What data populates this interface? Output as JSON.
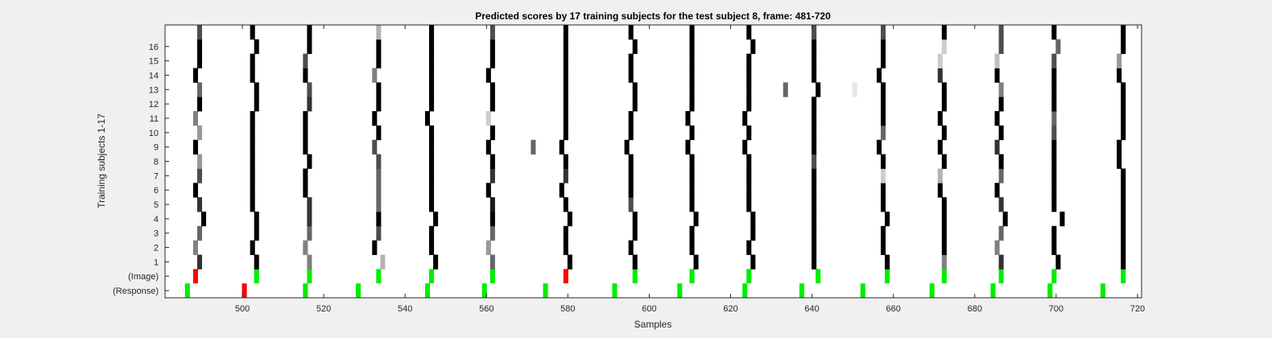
{
  "chart_data": {
    "type": "heatmap",
    "title": "Predicted scores by 17 training subjects for the test subject 8, frame: 481-720",
    "xlabel": "Samples",
    "ylabel": "Training subjects 1-17",
    "xlim": [
      481,
      720
    ],
    "xticks": [
      500,
      520,
      540,
      560,
      580,
      600,
      620,
      640,
      660,
      680,
      700,
      720
    ],
    "rows": [
      "(Response)",
      "(Image)",
      "1",
      "2",
      "3",
      "4",
      "5",
      "6",
      "7",
      "8",
      "9",
      "10",
      "11",
      "12",
      "13",
      "14",
      "15",
      "16",
      "17"
    ],
    "row_labels_shown": [
      "(Response)",
      "(Image)",
      "1",
      "2",
      "3",
      "4",
      "5",
      "6",
      "7",
      "8",
      "9",
      "10",
      "11",
      "12",
      "13",
      "14",
      "15",
      "16"
    ],
    "colors": {
      "background": "#ffffff",
      "figure": "#f0f0f0",
      "match": "#00ee00",
      "mismatch": "#ff0000",
      "axis": "#262626"
    },
    "image_markers": [
      {
        "x": 488,
        "color": "red"
      },
      {
        "x": 503,
        "color": "green"
      },
      {
        "x": 516,
        "color": "green"
      },
      {
        "x": 533,
        "color": "green"
      },
      {
        "x": 546,
        "color": "green"
      },
      {
        "x": 561,
        "color": "green"
      },
      {
        "x": 579,
        "color": "red"
      },
      {
        "x": 596,
        "color": "green"
      },
      {
        "x": 610,
        "color": "green"
      },
      {
        "x": 624,
        "color": "green"
      },
      {
        "x": 641,
        "color": "green"
      },
      {
        "x": 658,
        "color": "green"
      },
      {
        "x": 672,
        "color": "green"
      },
      {
        "x": 686,
        "color": "green"
      },
      {
        "x": 699,
        "color": "green"
      },
      {
        "x": 716,
        "color": "green"
      }
    ],
    "response_markers": [
      {
        "x": 486,
        "color": "green"
      },
      {
        "x": 500,
        "color": "red"
      },
      {
        "x": 515,
        "color": "green"
      },
      {
        "x": 528,
        "color": "green"
      },
      {
        "x": 545,
        "color": "green"
      },
      {
        "x": 559,
        "color": "green"
      },
      {
        "x": 574,
        "color": "green"
      },
      {
        "x": 591,
        "color": "green"
      },
      {
        "x": 607,
        "color": "green"
      },
      {
        "x": 623,
        "color": "green"
      },
      {
        "x": 637,
        "color": "green"
      },
      {
        "x": 652,
        "color": "green"
      },
      {
        "x": 669,
        "color": "green"
      },
      {
        "x": 684,
        "color": "green"
      },
      {
        "x": 698,
        "color": "green"
      },
      {
        "x": 711,
        "color": "green"
      }
    ],
    "peak_columns_x": [
      489,
      503,
      516,
      533,
      546,
      561,
      579,
      595,
      610,
      624,
      640,
      657,
      672,
      686,
      699,
      716
    ],
    "score_rows": [
      {
        "subject": 1,
        "x": [
          489,
          503,
          516,
          534,
          547,
          561,
          580,
          596,
          611,
          625,
          640,
          658,
          672,
          686,
          700,
          716
        ],
        "intensity": [
          0.8,
          1.0,
          0.5,
          0.3,
          1.0,
          0.6,
          1.0,
          1.0,
          1.0,
          1.0,
          1.0,
          1.0,
          0.5,
          0.8,
          1.0,
          1.0
        ]
      },
      {
        "subject": 2,
        "x": [
          488,
          502,
          515,
          532,
          546,
          560,
          579,
          595,
          610,
          624,
          640,
          657,
          672,
          685,
          699,
          716
        ],
        "intensity": [
          0.5,
          1.0,
          0.5,
          1.0,
          1.0,
          0.4,
          1.0,
          1.0,
          1.0,
          1.0,
          1.0,
          1.0,
          1.0,
          0.5,
          1.0,
          1.0
        ]
      },
      {
        "subject": 3,
        "x": [
          489,
          503,
          516,
          533,
          546,
          561,
          579,
          596,
          610,
          625,
          640,
          657,
          672,
          686,
          699,
          716
        ],
        "intensity": [
          0.6,
          1.0,
          0.6,
          0.7,
          1.0,
          0.6,
          1.0,
          1.0,
          1.0,
          1.0,
          1.0,
          1.0,
          1.0,
          0.6,
          1.0,
          1.0
        ]
      },
      {
        "subject": 4,
        "x": [
          490,
          503,
          516,
          533,
          547,
          561,
          580,
          596,
          611,
          625,
          640,
          658,
          672,
          687,
          701,
          716
        ],
        "intensity": [
          1.0,
          1.0,
          0.8,
          1.0,
          1.0,
          1.0,
          1.0,
          1.0,
          1.0,
          1.0,
          1.0,
          1.0,
          1.0,
          1.0,
          1.0,
          1.0
        ]
      },
      {
        "subject": 5,
        "x": [
          489,
          502,
          516,
          533,
          546,
          561,
          579,
          595,
          610,
          624,
          640,
          657,
          672,
          686,
          699,
          716
        ],
        "intensity": [
          0.8,
          1.0,
          0.8,
          0.6,
          1.0,
          0.9,
          1.0,
          0.7,
          1.0,
          1.0,
          1.0,
          1.0,
          1.0,
          0.8,
          1.0,
          1.0
        ]
      },
      {
        "subject": 6,
        "x": [
          488,
          502,
          515,
          533,
          546,
          560,
          578,
          595,
          610,
          624,
          640,
          657,
          671,
          685,
          699,
          716
        ],
        "intensity": [
          1.0,
          1.0,
          1.0,
          0.6,
          1.0,
          1.0,
          1.0,
          1.0,
          1.0,
          1.0,
          1.0,
          1.0,
          1.0,
          1.0,
          1.0,
          1.0
        ]
      },
      {
        "subject": 7,
        "x": [
          489,
          502,
          515,
          533,
          546,
          561,
          579,
          595,
          610,
          624,
          640,
          657,
          671,
          686,
          699,
          716
        ],
        "intensity": [
          0.7,
          1.0,
          1.0,
          0.6,
          1.0,
          0.8,
          0.8,
          1.0,
          1.0,
          1.0,
          1.0,
          0.2,
          0.3,
          0.6,
          1.0,
          1.0
        ]
      },
      {
        "subject": 8,
        "x": [
          489,
          502,
          516,
          533,
          546,
          561,
          579,
          595,
          610,
          624,
          640,
          657,
          672,
          686,
          699,
          715
        ],
        "intensity": [
          0.4,
          1.0,
          1.0,
          0.7,
          1.0,
          1.0,
          1.0,
          1.0,
          1.0,
          1.0,
          0.7,
          1.0,
          1.0,
          1.0,
          1.0,
          1.0
        ]
      },
      {
        "subject": 9,
        "x": [
          488,
          502,
          515,
          532,
          546,
          560,
          571,
          578,
          594,
          609,
          623,
          640,
          656,
          671,
          685,
          699,
          715
        ],
        "intensity": [
          1.0,
          1.0,
          1.0,
          0.7,
          1.0,
          1.0,
          0.6,
          1.0,
          1.0,
          1.0,
          1.0,
          1.0,
          1.0,
          1.0,
          0.8,
          1.0,
          1.0
        ]
      },
      {
        "subject": 10,
        "x": [
          489,
          502,
          515,
          533,
          546,
          561,
          579,
          595,
          610,
          624,
          640,
          657,
          672,
          686,
          699,
          716
        ],
        "intensity": [
          0.4,
          1.0,
          1.0,
          1.0,
          1.0,
          1.0,
          1.0,
          1.0,
          1.0,
          1.0,
          1.0,
          0.6,
          1.0,
          1.0,
          0.7,
          1.0
        ]
      },
      {
        "subject": 11,
        "x": [
          488,
          502,
          515,
          532,
          545,
          560,
          579,
          595,
          609,
          623,
          640,
          657,
          671,
          685,
          699,
          716
        ],
        "intensity": [
          0.5,
          1.0,
          1.0,
          1.0,
          1.0,
          0.2,
          1.0,
          1.0,
          1.0,
          1.0,
          1.0,
          1.0,
          1.0,
          1.0,
          0.6,
          1.0
        ]
      },
      {
        "subject": 12,
        "x": [
          489,
          503,
          516,
          533,
          546,
          561,
          579,
          596,
          610,
          624,
          640,
          657,
          672,
          686,
          699,
          716
        ],
        "intensity": [
          1.0,
          1.0,
          0.8,
          1.0,
          1.0,
          1.0,
          1.0,
          1.0,
          1.0,
          1.0,
          1.0,
          1.0,
          1.0,
          1.0,
          1.0,
          1.0
        ]
      },
      {
        "subject": 13,
        "x": [
          489,
          503,
          516,
          533,
          546,
          561,
          579,
          596,
          610,
          624,
          633,
          641,
          650,
          657,
          672,
          686,
          699,
          716
        ],
        "intensity": [
          0.6,
          1.0,
          0.7,
          1.0,
          1.0,
          1.0,
          1.0,
          1.0,
          1.0,
          1.0,
          0.6,
          1.0,
          0.1,
          1.0,
          1.0,
          0.5,
          1.0,
          1.0
        ]
      },
      {
        "subject": 14,
        "x": [
          488,
          502,
          515,
          532,
          546,
          560,
          579,
          595,
          610,
          624,
          640,
          656,
          671,
          685,
          699,
          715
        ],
        "intensity": [
          1.0,
          1.0,
          1.0,
          0.5,
          1.0,
          1.0,
          1.0,
          1.0,
          1.0,
          1.0,
          1.0,
          1.0,
          0.8,
          1.0,
          1.0,
          1.0
        ]
      },
      {
        "subject": 15,
        "x": [
          489,
          502,
          515,
          533,
          546,
          561,
          579,
          595,
          610,
          624,
          640,
          657,
          671,
          685,
          699,
          715
        ],
        "intensity": [
          1.0,
          1.0,
          0.7,
          1.0,
          1.0,
          1.0,
          1.0,
          1.0,
          1.0,
          1.0,
          1.0,
          1.0,
          0.2,
          0.25,
          0.7,
          0.4
        ]
      },
      {
        "subject": 16,
        "x": [
          489,
          503,
          516,
          533,
          546,
          561,
          579,
          596,
          610,
          625,
          640,
          657,
          672,
          686,
          700,
          716
        ],
        "intensity": [
          1.0,
          1.0,
          1.0,
          1.0,
          1.0,
          1.0,
          1.0,
          1.0,
          1.0,
          1.0,
          1.0,
          1.0,
          0.2,
          0.7,
          0.6,
          1.0
        ]
      },
      {
        "subject": 17,
        "x": [
          489,
          502,
          516,
          533,
          546,
          561,
          579,
          595,
          610,
          624,
          640,
          657,
          672,
          686,
          699,
          716
        ],
        "intensity": [
          0.7,
          1.0,
          1.0,
          0.3,
          1.0,
          0.7,
          1.0,
          1.0,
          1.0,
          1.0,
          0.7,
          0.7,
          1.0,
          0.7,
          1.0,
          1.0
        ]
      }
    ]
  }
}
